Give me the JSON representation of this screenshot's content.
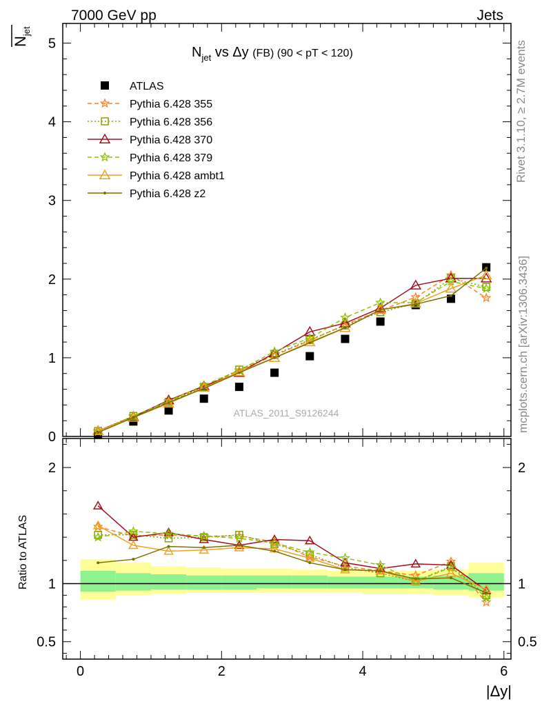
{
  "header": {
    "left": "7000 GeV pp",
    "right": "Jets"
  },
  "side_labels": {
    "rivet": "Rivet 3.1.10, ≥ 2.7M events",
    "mcplots": "mcplots.cern.ch [arXiv:1306.3436]"
  },
  "watermark": "ATLAS_2011_S9126244",
  "chart_data": [
    {
      "type": "line",
      "title": "N_jet vs Δy (FB) (90 < pT < 120)",
      "title_parts": {
        "main": "N",
        "sub": "jet",
        "rest": " vs Δy ",
        "small": "(FB) (90 < pT < 120)"
      },
      "ylabel_parts": {
        "main": "N",
        "sub": "jet"
      },
      "xlabel": "|Δy|",
      "xlim": [
        -0.25,
        6.1
      ],
      "ylim": [
        0,
        5.25
      ],
      "yticks": [
        0,
        1,
        2,
        3,
        4,
        5
      ],
      "grid": false,
      "legend_position": "top-left",
      "x": [
        0.25,
        0.75,
        1.25,
        1.75,
        2.25,
        2.75,
        3.25,
        3.75,
        4.25,
        4.75,
        5.25,
        5.75
      ],
      "series": [
        {
          "name": "ATLAS",
          "color": "#000000",
          "marker": "square",
          "style": "points",
          "values": [
            0.02,
            0.19,
            0.33,
            0.48,
            0.63,
            0.81,
            1.02,
            1.24,
            1.46,
            1.67,
            1.75,
            2.15
          ]
        },
        {
          "name": "Pythia 6.428 355",
          "color": "#ff7f27",
          "marker": "star",
          "style": "dashed",
          "values": [
            0.07,
            0.25,
            0.44,
            0.62,
            0.84,
            1.03,
            1.22,
            1.42,
            1.6,
            1.77,
            2.05,
            1.76
          ]
        },
        {
          "name": "Pythia 6.428 356",
          "color": "#7fa300",
          "marker": "open-square",
          "style": "dotted",
          "values": [
            0.07,
            0.26,
            0.44,
            0.63,
            0.85,
            1.04,
            1.23,
            1.41,
            1.58,
            1.69,
            2.01,
            1.9
          ]
        },
        {
          "name": "Pythia 6.428 370",
          "color": "#a01020",
          "marker": "open-triangle",
          "style": "solid",
          "values": [
            0.07,
            0.25,
            0.46,
            0.64,
            0.81,
            1.06,
            1.33,
            1.44,
            1.63,
            1.92,
            2.01,
            2.01
          ]
        },
        {
          "name": "Pythia 6.428 379",
          "color": "#8cc000",
          "marker": "star",
          "style": "dashed",
          "values": [
            0.06,
            0.26,
            0.45,
            0.65,
            0.84,
            1.08,
            1.25,
            1.51,
            1.7,
            1.7,
            1.97,
            1.88
          ]
        },
        {
          "name": "Pythia 6.428 ambt1",
          "color": "#f0a020",
          "marker": "open-triangle",
          "style": "solid",
          "values": [
            0.07,
            0.24,
            0.42,
            0.62,
            0.82,
            1.0,
            1.2,
            1.38,
            1.61,
            1.69,
            1.88,
            2.05
          ]
        },
        {
          "name": "Pythia 6.428 z2",
          "color": "#7a7000",
          "marker": "dot",
          "style": "solid",
          "values": [
            0.05,
            0.24,
            0.43,
            0.61,
            0.81,
            1.0,
            1.19,
            1.38,
            1.61,
            1.68,
            1.79,
            2.14
          ]
        }
      ]
    },
    {
      "type": "line",
      "ylabel": "Ratio to ATLAS",
      "xlabel": "|Δy|",
      "xlim": [
        -0.25,
        6.1
      ],
      "ylim": [
        0.35,
        2.25
      ],
      "yticks": [
        0.5,
        1,
        2
      ],
      "xticks": [
        0,
        2,
        4,
        6
      ],
      "reference_line": 1,
      "bands": {
        "x_edges": [
          0,
          0.5,
          1.0,
          1.5,
          2.0,
          2.5,
          3.0,
          3.5,
          4.0,
          4.5,
          5.0,
          5.5,
          6.0
        ],
        "outer_lo": [
          0.86,
          0.9,
          0.91,
          0.92,
          0.92,
          0.92,
          0.92,
          0.92,
          0.91,
          0.91,
          0.9,
          0.88
        ],
        "outer_hi": [
          1.21,
          1.18,
          1.15,
          1.14,
          1.13,
          1.13,
          1.12,
          1.11,
          1.11,
          1.11,
          1.12,
          1.18
        ],
        "inner_lo": [
          0.93,
          0.94,
          0.95,
          0.95,
          0.95,
          0.96,
          0.96,
          0.96,
          0.96,
          0.96,
          0.95,
          0.94
        ],
        "inner_hi": [
          1.11,
          1.09,
          1.08,
          1.07,
          1.07,
          1.07,
          1.07,
          1.06,
          1.06,
          1.06,
          1.07,
          1.09
        ],
        "outer_color": "#ffff99",
        "inner_color": "#8ef28e"
      },
      "series": [
        {
          "name": "Pythia 6.428 355",
          "color": "#ff7f27",
          "marker": "star",
          "style": "dashed",
          "values": [
            1.49,
            1.41,
            1.42,
            1.41,
            1.41,
            1.36,
            1.23,
            1.15,
            1.11,
            1.07,
            1.19,
            0.84
          ]
        },
        {
          "name": "Pythia 6.428 356",
          "color": "#7fa300",
          "marker": "open-square",
          "style": "dotted",
          "values": [
            1.42,
            1.42,
            1.39,
            1.4,
            1.42,
            1.34,
            1.25,
            1.14,
            1.09,
            1.02,
            1.15,
            0.9
          ]
        },
        {
          "name": "Pythia 6.428 370",
          "color": "#a01020",
          "marker": "open-triangle",
          "style": "solid",
          "values": [
            1.67,
            1.4,
            1.44,
            1.38,
            1.33,
            1.38,
            1.37,
            1.18,
            1.13,
            1.17,
            1.16,
            0.94
          ]
        },
        {
          "name": "Pythia 6.428 379",
          "color": "#8cc000",
          "marker": "star",
          "style": "dashed",
          "values": [
            1.4,
            1.45,
            1.43,
            1.41,
            1.39,
            1.35,
            1.27,
            1.22,
            1.16,
            1.02,
            1.14,
            0.88
          ]
        },
        {
          "name": "Pythia 6.428 ambt1",
          "color": "#f0a020",
          "marker": "open-triangle",
          "style": "solid",
          "values": [
            1.5,
            1.33,
            1.28,
            1.29,
            1.31,
            1.3,
            1.22,
            1.12,
            1.11,
            1.02,
            1.09,
            0.95
          ]
        },
        {
          "name": "Pythia 6.428 z2",
          "color": "#7a7000",
          "marker": "dot",
          "style": "solid",
          "values": [
            1.18,
            1.21,
            1.32,
            1.31,
            1.33,
            1.28,
            1.18,
            1.12,
            1.11,
            1.04,
            1.05,
            0.92
          ]
        }
      ]
    }
  ]
}
